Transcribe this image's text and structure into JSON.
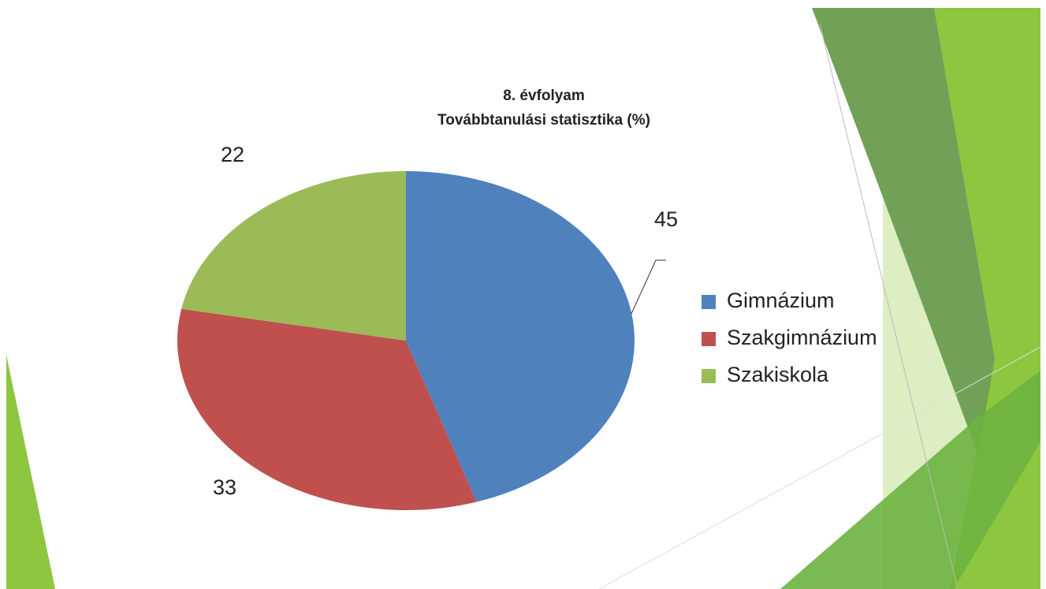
{
  "chart_data": {
    "type": "pie",
    "title": "8. évfolyam",
    "subtitle": "Továbbtanulási statisztika (%)",
    "categories": [
      "Gimnázium",
      "Szakgimnázium",
      "Szakiskola"
    ],
    "values": [
      45,
      33,
      22
    ],
    "colors": [
      "#4f81bd",
      "#c0504d",
      "#9bbb59"
    ],
    "legend": "right"
  }
}
